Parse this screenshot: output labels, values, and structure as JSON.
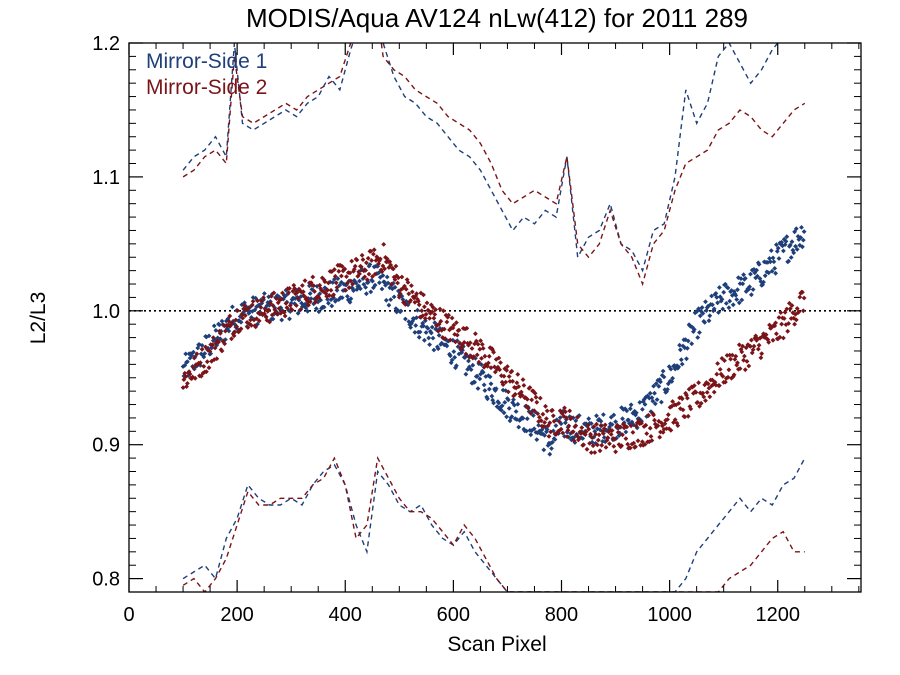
{
  "chart_data": {
    "type": "scatter",
    "title": "MODIS/Aqua AV124 nLw(412) for 2011 289",
    "xlabel": "Scan Pixel",
    "ylabel": "L2/L3",
    "xlim": [
      0,
      1354
    ],
    "ylim": [
      0.79,
      1.2
    ],
    "x_ticks": [
      0,
      200,
      400,
      600,
      800,
      1000,
      1200
    ],
    "x_tick_labels": [
      "0",
      "200",
      "400",
      "600",
      "800",
      "1000",
      "1200"
    ],
    "y_ticks": [
      0.8,
      0.9,
      1.0,
      1.1,
      1.2
    ],
    "y_tick_labels": [
      "0.8",
      "0.9",
      "1.0",
      "1.1",
      "1.2"
    ],
    "reference_line": 1.0,
    "legend_position": "top-left",
    "colors": {
      "side1": "#1f3f7a",
      "side2": "#7a1418"
    },
    "series": [
      {
        "name": "Mirror-Side 1",
        "color": "#1f3f7a",
        "mean": {
          "x": [
            100,
            150,
            200,
            250,
            300,
            350,
            400,
            450,
            470,
            500,
            550,
            600,
            650,
            700,
            750,
            780,
            800,
            850,
            900,
            950,
            1000,
            1050,
            1100,
            1150,
            1200,
            1250
          ],
          "y": [
            0.955,
            0.975,
            0.997,
            1.002,
            1.005,
            1.01,
            1.015,
            1.025,
            1.02,
            1.005,
            0.985,
            0.97,
            0.95,
            0.93,
            0.915,
            0.9,
            0.915,
            0.91,
            0.915,
            0.925,
            0.95,
            0.99,
            1.01,
            1.02,
            1.04,
            1.06
          ]
        },
        "upper": {
          "x": [
            100,
            120,
            140,
            160,
            180,
            195,
            210,
            230,
            250,
            270,
            290,
            310,
            330,
            350,
            370,
            390,
            410,
            430,
            450,
            470,
            490,
            510,
            530,
            550,
            570,
            590,
            610,
            630,
            650,
            670,
            690,
            710,
            730,
            750,
            770,
            790,
            810,
            830,
            850,
            870,
            890,
            910,
            930,
            950,
            970,
            990,
            1010,
            1030,
            1050,
            1070,
            1090,
            1110,
            1130,
            1150,
            1170,
            1190,
            1210,
            1230,
            1250
          ],
          "y": [
            1.105,
            1.115,
            1.12,
            1.13,
            1.115,
            1.2,
            1.14,
            1.135,
            1.14,
            1.145,
            1.15,
            1.145,
            1.155,
            1.16,
            1.175,
            1.165,
            1.195,
            1.22,
            1.25,
            1.2,
            1.175,
            1.16,
            1.155,
            1.145,
            1.14,
            1.13,
            1.12,
            1.115,
            1.105,
            1.09,
            1.075,
            1.06,
            1.07,
            1.065,
            1.075,
            1.07,
            1.115,
            1.04,
            1.055,
            1.06,
            1.08,
            1.05,
            1.045,
            1.03,
            1.06,
            1.065,
            1.1,
            1.165,
            1.14,
            1.155,
            1.19,
            1.2,
            1.185,
            1.17,
            1.18,
            1.195,
            1.205,
            1.21,
            1.22
          ]
        },
        "lower": {
          "x": [
            100,
            120,
            140,
            160,
            180,
            200,
            220,
            240,
            260,
            280,
            300,
            320,
            340,
            360,
            380,
            400,
            420,
            440,
            460,
            480,
            500,
            520,
            540,
            560,
            580,
            600,
            620,
            640,
            660,
            680,
            700,
            1010,
            1030,
            1050,
            1070,
            1090,
            1110,
            1130,
            1150,
            1170,
            1190,
            1210,
            1230,
            1250
          ],
          "y": [
            0.8,
            0.805,
            0.81,
            0.8,
            0.83,
            0.845,
            0.87,
            0.86,
            0.855,
            0.855,
            0.86,
            0.855,
            0.87,
            0.88,
            0.885,
            0.87,
            0.84,
            0.82,
            0.88,
            0.87,
            0.855,
            0.85,
            0.855,
            0.84,
            0.83,
            0.825,
            0.835,
            0.82,
            0.81,
            0.8,
            0.79,
            0.79,
            0.8,
            0.82,
            0.83,
            0.84,
            0.85,
            0.86,
            0.85,
            0.86,
            0.855,
            0.87,
            0.875,
            0.89
          ]
        }
      },
      {
        "name": "Mirror-Side 2",
        "color": "#7a1418",
        "mean": {
          "x": [
            100,
            150,
            200,
            250,
            300,
            350,
            400,
            450,
            470,
            500,
            550,
            600,
            650,
            700,
            750,
            780,
            800,
            850,
            900,
            950,
            1000,
            1050,
            1100,
            1150,
            1200,
            1250
          ],
          "y": [
            0.948,
            0.968,
            0.995,
            1.0,
            1.008,
            1.018,
            1.025,
            1.035,
            1.04,
            1.02,
            1.0,
            0.985,
            0.97,
            0.95,
            0.93,
            0.915,
            0.92,
            0.905,
            0.905,
            0.91,
            0.92,
            0.935,
            0.955,
            0.97,
            0.985,
            1.01
          ]
        },
        "upper": {
          "x": [
            100,
            120,
            140,
            160,
            180,
            195,
            210,
            230,
            250,
            270,
            290,
            310,
            330,
            350,
            370,
            390,
            410,
            430,
            450,
            470,
            490,
            510,
            530,
            550,
            570,
            590,
            610,
            630,
            650,
            670,
            690,
            710,
            730,
            750,
            770,
            790,
            810,
            830,
            850,
            870,
            890,
            910,
            930,
            950,
            970,
            990,
            1010,
            1030,
            1050,
            1070,
            1090,
            1110,
            1130,
            1150,
            1170,
            1190,
            1210,
            1230,
            1250
          ],
          "y": [
            1.1,
            1.105,
            1.115,
            1.12,
            1.11,
            1.19,
            1.145,
            1.14,
            1.145,
            1.15,
            1.155,
            1.15,
            1.16,
            1.165,
            1.17,
            1.175,
            1.2,
            1.21,
            1.25,
            1.19,
            1.18,
            1.175,
            1.165,
            1.16,
            1.155,
            1.145,
            1.14,
            1.135,
            1.125,
            1.11,
            1.09,
            1.08,
            1.085,
            1.09,
            1.085,
            1.08,
            1.115,
            1.05,
            1.04,
            1.05,
            1.075,
            1.05,
            1.04,
            1.02,
            1.05,
            1.06,
            1.09,
            1.11,
            1.115,
            1.12,
            1.135,
            1.14,
            1.15,
            1.145,
            1.135,
            1.13,
            1.14,
            1.15,
            1.155
          ]
        },
        "lower": {
          "x": [
            100,
            120,
            140,
            160,
            180,
            200,
            220,
            240,
            260,
            280,
            300,
            320,
            340,
            360,
            380,
            400,
            420,
            440,
            460,
            480,
            500,
            520,
            540,
            560,
            580,
            600,
            620,
            640,
            660,
            680,
            700,
            1090,
            1110,
            1130,
            1150,
            1170,
            1190,
            1210,
            1230,
            1250
          ],
          "y": [
            0.795,
            0.8,
            0.79,
            0.8,
            0.815,
            0.84,
            0.865,
            0.855,
            0.855,
            0.86,
            0.86,
            0.86,
            0.87,
            0.875,
            0.89,
            0.87,
            0.83,
            0.84,
            0.89,
            0.875,
            0.86,
            0.85,
            0.85,
            0.845,
            0.835,
            0.825,
            0.84,
            0.83,
            0.815,
            0.8,
            0.79,
            0.79,
            0.8,
            0.805,
            0.81,
            0.82,
            0.83,
            0.835,
            0.82,
            0.82
          ]
        }
      }
    ]
  }
}
